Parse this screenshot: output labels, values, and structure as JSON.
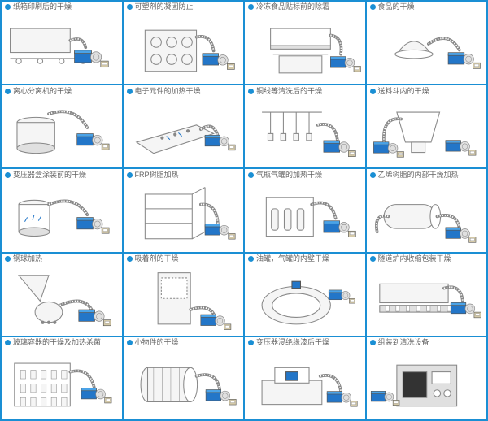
{
  "grid": {
    "columns": 4,
    "rows": 5,
    "border_color": "#1a8fd4",
    "background_color": "#ffffff"
  },
  "style": {
    "bullet_color": "#1a8fd4",
    "title_color": "#666666",
    "title_fontsize": 9,
    "icon_blue": "#2376c8",
    "icon_blue_light": "#4aa3e8",
    "icon_control_beige": "#d4c9a8",
    "line_color": "#888888",
    "line_dark": "#555555",
    "fill_light": "#f5f5f5",
    "fill_gray": "#e0e0e0"
  },
  "cells": [
    {
      "label": "纸箱印刷后的干燥"
    },
    {
      "label": "可塑剂的凝固防止"
    },
    {
      "label": "冷冻食品贴标前的除霜"
    },
    {
      "label": "食品的干燥"
    },
    {
      "label": "离心分离机的干燥"
    },
    {
      "label": "电子元件的加热干燥"
    },
    {
      "label": "铜线等清洗后的干燥"
    },
    {
      "label": "送料斗内的干燥"
    },
    {
      "label": "变压器盒涂装前的干燥"
    },
    {
      "label": "FRP树脂加热"
    },
    {
      "label": "气瓶气罐的加热干燥"
    },
    {
      "label": "乙烯树脂的内部干燥加热"
    },
    {
      "label": "钢球加热"
    },
    {
      "label": "吸着剂的干燥"
    },
    {
      "label": "油罐，气罐的内壁干燥"
    },
    {
      "label": "隧道炉内收缩包装干燥"
    },
    {
      "label": "玻璃容器的干燥及加热杀菌"
    },
    {
      "label": "小物件的干燥"
    },
    {
      "label": "变压器浸绝缘漆后干燥"
    },
    {
      "label": "组装到清洗设备"
    }
  ]
}
